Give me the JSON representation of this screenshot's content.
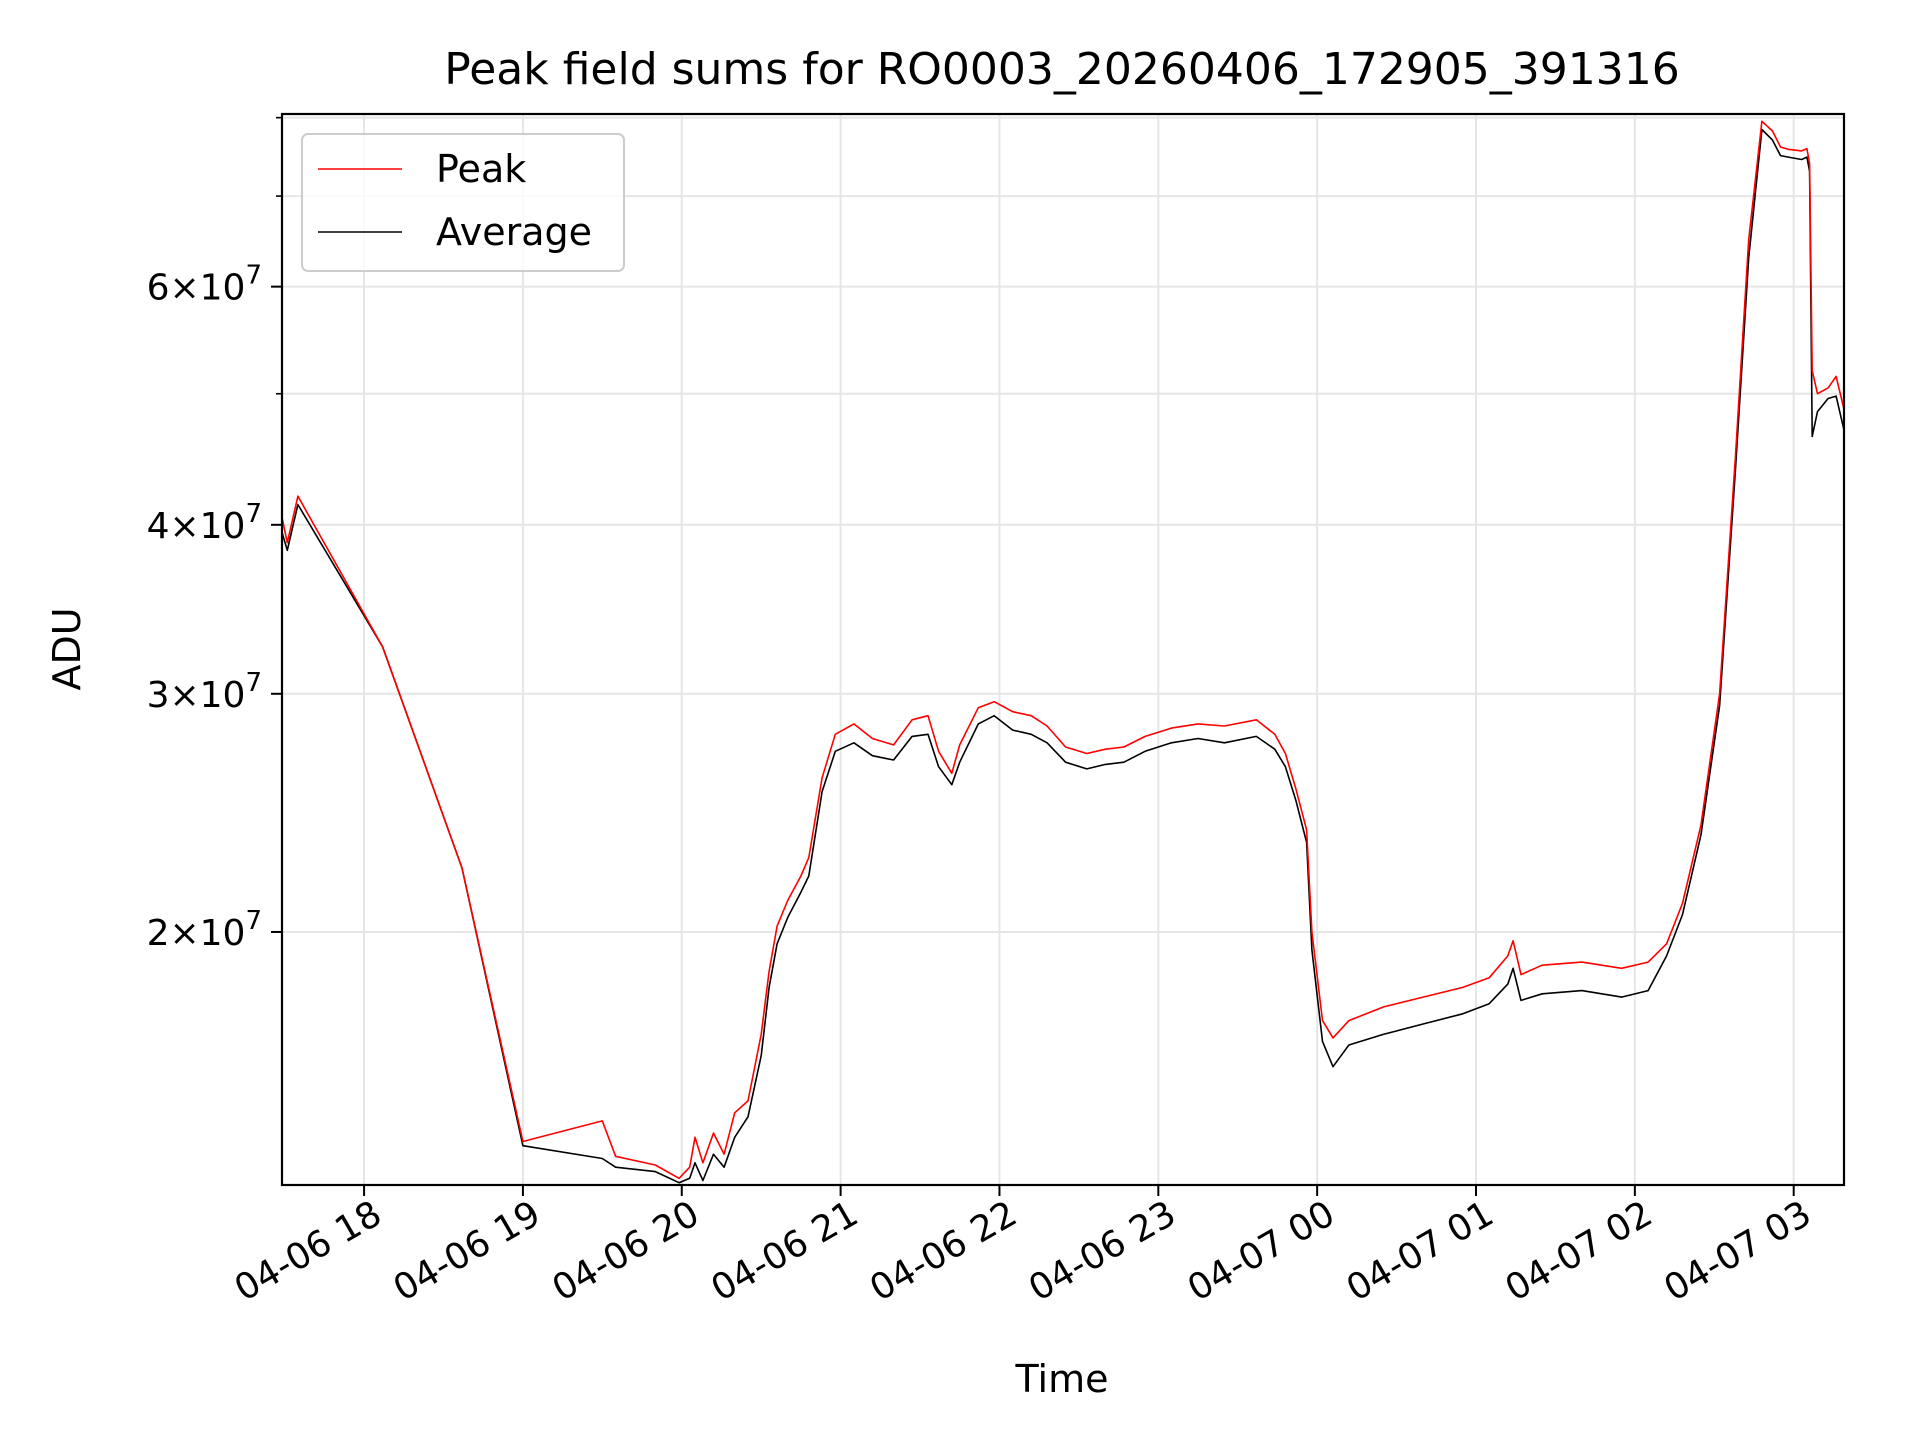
{
  "chart_data": {
    "type": "line",
    "title": "Peak field sums for RO0003_20260406_172905_391316",
    "xlabel": "Time",
    "ylabel": "ADU",
    "yscale": "log",
    "xlim": [
      "2026-04-06 17:29",
      "2026-04-07 03:19"
    ],
    "ylim": [
      13000000,
      80500000
    ],
    "grid": true,
    "legend_position": "upper-left",
    "x_ticks": [
      {
        "t": "2026-04-06 18:00",
        "label": "04-06 18"
      },
      {
        "t": "2026-04-06 19:00",
        "label": "04-06 19"
      },
      {
        "t": "2026-04-06 20:00",
        "label": "04-06 20"
      },
      {
        "t": "2026-04-06 21:00",
        "label": "04-06 21"
      },
      {
        "t": "2026-04-06 22:00",
        "label": "04-06 22"
      },
      {
        "t": "2026-04-06 23:00",
        "label": "04-06 23"
      },
      {
        "t": "2026-04-07 00:00",
        "label": "04-07 00"
      },
      {
        "t": "2026-04-07 01:00",
        "label": "04-07 01"
      },
      {
        "t": "2026-04-07 02:00",
        "label": "04-07 02"
      },
      {
        "t": "2026-04-07 03:00",
        "label": "04-07 03"
      }
    ],
    "y_major_ticks": [
      {
        "value": 20000000,
        "label_mantissa": "2",
        "label_exponent": "7"
      },
      {
        "value": 30000000,
        "label_mantissa": "3",
        "label_exponent": "7"
      },
      {
        "value": 40000000,
        "label_mantissa": "4",
        "label_exponent": "7"
      },
      {
        "value": 60000000,
        "label_mantissa": "6",
        "label_exponent": "7"
      }
    ],
    "y_minor_ticks": [
      50000000,
      70000000,
      80000000
    ],
    "series": [
      {
        "name": "Peak",
        "color": "#ff0000",
        "points": [
          [
            "2026-04-06 17:29",
            40500000
          ],
          [
            "2026-04-06 17:31",
            38800000
          ],
          [
            "2026-04-06 17:35",
            42000000
          ],
          [
            "2026-04-06 18:07",
            32500000
          ],
          [
            "2026-04-06 18:37",
            22300000
          ],
          [
            "2026-04-06 19:00",
            14000000
          ],
          [
            "2026-04-06 19:30",
            14500000
          ],
          [
            "2026-04-06 19:35",
            13650000
          ],
          [
            "2026-04-06 19:50",
            13450000
          ],
          [
            "2026-04-06 19:59",
            13150000
          ],
          [
            "2026-04-06 20:03",
            13400000
          ],
          [
            "2026-04-06 20:05",
            14100000
          ],
          [
            "2026-04-06 20:08",
            13500000
          ],
          [
            "2026-04-06 20:12",
            14200000
          ],
          [
            "2026-04-06 20:16",
            13700000
          ],
          [
            "2026-04-06 20:20",
            14700000
          ],
          [
            "2026-04-06 20:25",
            15000000
          ],
          [
            "2026-04-06 20:30",
            16800000
          ],
          [
            "2026-04-06 20:33",
            18700000
          ],
          [
            "2026-04-06 20:36",
            20200000
          ],
          [
            "2026-04-06 20:40",
            21100000
          ],
          [
            "2026-04-06 20:45",
            22000000
          ],
          [
            "2026-04-06 20:48",
            22700000
          ],
          [
            "2026-04-06 20:53",
            26000000
          ],
          [
            "2026-04-06 20:58",
            28000000
          ],
          [
            "2026-04-06 21:05",
            28500000
          ],
          [
            "2026-04-06 21:12",
            27800000
          ],
          [
            "2026-04-06 21:20",
            27500000
          ],
          [
            "2026-04-06 21:27",
            28700000
          ],
          [
            "2026-04-06 21:33",
            28900000
          ],
          [
            "2026-04-06 21:37",
            27200000
          ],
          [
            "2026-04-06 21:42",
            26200000
          ],
          [
            "2026-04-06 21:45",
            27500000
          ],
          [
            "2026-04-06 21:52",
            29300000
          ],
          [
            "2026-04-06 21:58",
            29600000
          ],
          [
            "2026-04-06 22:05",
            29100000
          ],
          [
            "2026-04-06 22:12",
            28900000
          ],
          [
            "2026-04-06 22:18",
            28400000
          ],
          [
            "2026-04-06 22:25",
            27400000
          ],
          [
            "2026-04-06 22:33",
            27100000
          ],
          [
            "2026-04-06 22:40",
            27300000
          ],
          [
            "2026-04-06 22:47",
            27400000
          ],
          [
            "2026-04-06 22:55",
            27900000
          ],
          [
            "2026-04-06 23:05",
            28300000
          ],
          [
            "2026-04-06 23:15",
            28500000
          ],
          [
            "2026-04-06 23:25",
            28400000
          ],
          [
            "2026-04-06 23:37",
            28700000
          ],
          [
            "2026-04-06 23:44",
            28000000
          ],
          [
            "2026-04-06 23:48",
            27100000
          ],
          [
            "2026-04-06 23:52",
            25500000
          ],
          [
            "2026-04-06 23:56",
            23800000
          ],
          [
            "2026-04-06 23:58",
            20000000
          ],
          [
            "2026-04-07 00:02",
            17200000
          ],
          [
            "2026-04-07 00:06",
            16700000
          ],
          [
            "2026-04-07 00:12",
            17200000
          ],
          [
            "2026-04-07 00:25",
            17600000
          ],
          [
            "2026-04-07 00:40",
            17900000
          ],
          [
            "2026-04-07 00:55",
            18200000
          ],
          [
            "2026-04-07 01:05",
            18500000
          ],
          [
            "2026-04-07 01:12",
            19200000
          ],
          [
            "2026-04-07 01:14",
            19700000
          ],
          [
            "2026-04-07 01:17",
            18600000
          ],
          [
            "2026-04-07 01:25",
            18900000
          ],
          [
            "2026-04-07 01:40",
            19000000
          ],
          [
            "2026-04-07 01:55",
            18800000
          ],
          [
            "2026-04-07 02:05",
            19000000
          ],
          [
            "2026-04-07 02:12",
            19600000
          ],
          [
            "2026-04-07 02:18",
            21000000
          ],
          [
            "2026-04-07 02:25",
            24000000
          ],
          [
            "2026-04-07 02:32",
            30000000
          ],
          [
            "2026-04-07 02:38",
            45000000
          ],
          [
            "2026-04-07 02:43",
            65000000
          ],
          [
            "2026-04-07 02:48",
            79500000
          ],
          [
            "2026-04-07 02:52",
            78200000
          ],
          [
            "2026-04-07 02:55",
            76100000
          ],
          [
            "2026-04-07 02:58",
            75800000
          ],
          [
            "2026-04-07 03:03",
            75600000
          ],
          [
            "2026-04-07 03:05",
            75900000
          ],
          [
            "2026-04-07 03:06",
            74000000
          ],
          [
            "2026-04-07 03:07",
            52000000
          ],
          [
            "2026-04-07 03:09",
            50000000
          ],
          [
            "2026-04-07 03:13",
            50500000
          ],
          [
            "2026-04-07 03:16",
            51500000
          ],
          [
            "2026-04-07 03:19",
            48700000
          ]
        ]
      },
      {
        "name": "Average",
        "color": "#000000",
        "points": [
          [
            "2026-04-06 17:29",
            39500000
          ],
          [
            "2026-04-06 17:31",
            38300000
          ],
          [
            "2026-04-06 17:35",
            41400000
          ],
          [
            "2026-04-06 18:07",
            32500000
          ],
          [
            "2026-04-06 18:37",
            22300000
          ],
          [
            "2026-04-06 19:00",
            13900000
          ],
          [
            "2026-04-06 19:30",
            13600000
          ],
          [
            "2026-04-06 19:35",
            13400000
          ],
          [
            "2026-04-06 19:50",
            13300000
          ],
          [
            "2026-04-06 19:59",
            13050000
          ],
          [
            "2026-04-06 20:03",
            13150000
          ],
          [
            "2026-04-06 20:05",
            13500000
          ],
          [
            "2026-04-06 20:08",
            13100000
          ],
          [
            "2026-04-06 20:12",
            13700000
          ],
          [
            "2026-04-06 20:16",
            13400000
          ],
          [
            "2026-04-06 20:20",
            14100000
          ],
          [
            "2026-04-06 20:25",
            14600000
          ],
          [
            "2026-04-06 20:30",
            16200000
          ],
          [
            "2026-04-06 20:33",
            18200000
          ],
          [
            "2026-04-06 20:36",
            19600000
          ],
          [
            "2026-04-06 20:40",
            20500000
          ],
          [
            "2026-04-06 20:45",
            21400000
          ],
          [
            "2026-04-06 20:48",
            22000000
          ],
          [
            "2026-04-06 20:53",
            25400000
          ],
          [
            "2026-04-06 20:58",
            27200000
          ],
          [
            "2026-04-06 21:05",
            27600000
          ],
          [
            "2026-04-06 21:12",
            27000000
          ],
          [
            "2026-04-06 21:20",
            26800000
          ],
          [
            "2026-04-06 21:27",
            27900000
          ],
          [
            "2026-04-06 21:33",
            28000000
          ],
          [
            "2026-04-06 21:37",
            26500000
          ],
          [
            "2026-04-06 21:42",
            25700000
          ],
          [
            "2026-04-06 21:45",
            26700000
          ],
          [
            "2026-04-06 21:52",
            28500000
          ],
          [
            "2026-04-06 21:58",
            28900000
          ],
          [
            "2026-04-06 22:05",
            28200000
          ],
          [
            "2026-04-06 22:12",
            28000000
          ],
          [
            "2026-04-06 22:18",
            27600000
          ],
          [
            "2026-04-06 22:25",
            26700000
          ],
          [
            "2026-04-06 22:33",
            26400000
          ],
          [
            "2026-04-06 22:40",
            26600000
          ],
          [
            "2026-04-06 22:47",
            26700000
          ],
          [
            "2026-04-06 22:55",
            27200000
          ],
          [
            "2026-04-06 23:05",
            27600000
          ],
          [
            "2026-04-06 23:15",
            27800000
          ],
          [
            "2026-04-06 23:25",
            27600000
          ],
          [
            "2026-04-06 23:37",
            27900000
          ],
          [
            "2026-04-06 23:44",
            27300000
          ],
          [
            "2026-04-06 23:48",
            26500000
          ],
          [
            "2026-04-06 23:52",
            25000000
          ],
          [
            "2026-04-06 23:56",
            23300000
          ],
          [
            "2026-04-06 23:58",
            19400000
          ],
          [
            "2026-04-07 00:02",
            16600000
          ],
          [
            "2026-04-07 00:06",
            15900000
          ],
          [
            "2026-04-07 00:12",
            16500000
          ],
          [
            "2026-04-07 00:25",
            16800000
          ],
          [
            "2026-04-07 00:40",
            17100000
          ],
          [
            "2026-04-07 00:55",
            17400000
          ],
          [
            "2026-04-07 01:05",
            17700000
          ],
          [
            "2026-04-07 01:12",
            18300000
          ],
          [
            "2026-04-07 01:14",
            18800000
          ],
          [
            "2026-04-07 01:17",
            17800000
          ],
          [
            "2026-04-07 01:25",
            18000000
          ],
          [
            "2026-04-07 01:40",
            18100000
          ],
          [
            "2026-04-07 01:55",
            17900000
          ],
          [
            "2026-04-07 02:05",
            18100000
          ],
          [
            "2026-04-07 02:12",
            19200000
          ],
          [
            "2026-04-07 02:18",
            20600000
          ],
          [
            "2026-04-07 02:25",
            23600000
          ],
          [
            "2026-04-07 02:32",
            29400000
          ],
          [
            "2026-04-07 02:38",
            44000000
          ],
          [
            "2026-04-07 02:43",
            63000000
          ],
          [
            "2026-04-07 02:48",
            78400000
          ],
          [
            "2026-04-07 02:52",
            77000000
          ],
          [
            "2026-04-07 02:55",
            75000000
          ],
          [
            "2026-04-07 02:58",
            74800000
          ],
          [
            "2026-04-07 03:03",
            74500000
          ],
          [
            "2026-04-07 03:05",
            74800000
          ],
          [
            "2026-04-07 03:06",
            73000000
          ],
          [
            "2026-04-07 03:07",
            46500000
          ],
          [
            "2026-04-07 03:09",
            48500000
          ],
          [
            "2026-04-07 03:13",
            49600000
          ],
          [
            "2026-04-07 03:16",
            49800000
          ],
          [
            "2026-04-07 03:19",
            47000000
          ]
        ]
      }
    ]
  }
}
